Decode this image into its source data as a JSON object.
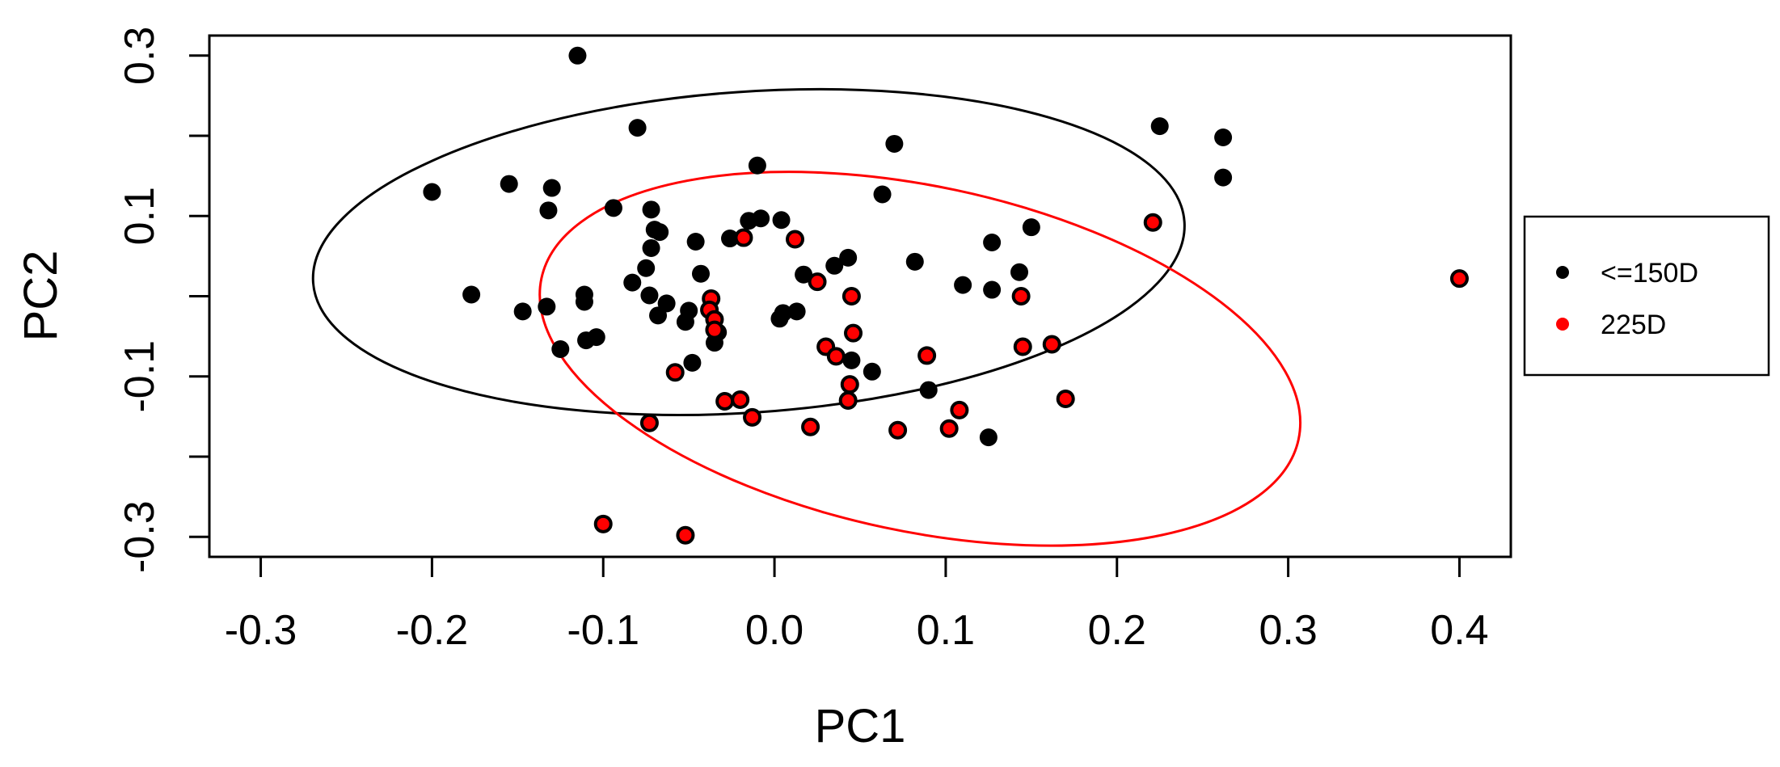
{
  "chart_data": {
    "type": "scatter",
    "title": "",
    "xlabel": "PC1",
    "ylabel": "PC2",
    "xlim": [
      -0.33,
      0.43
    ],
    "ylim": [
      -0.325,
      0.325
    ],
    "xticks": [
      -0.3,
      -0.2,
      -0.1,
      0.0,
      0.1,
      0.2,
      0.3,
      0.4
    ],
    "xtick_labels": [
      "-0.3",
      "-0.2",
      "-0.1",
      "0.0",
      "0.1",
      "0.2",
      "0.3",
      "0.4"
    ],
    "yticks": [
      -0.3,
      -0.2,
      -0.1,
      0.0,
      0.1,
      0.2,
      0.3
    ],
    "ytick_labels": [
      "-0.3",
      "",
      "-0.1",
      "",
      "0.1",
      "",
      "0.3"
    ],
    "grid": false,
    "legend": {
      "position": "right",
      "entries": [
        {
          "label": "<=150D",
          "color": "#000000"
        },
        {
          "label": "225D",
          "color": "#ff0000"
        }
      ]
    },
    "series": [
      {
        "name": "<=150D",
        "color": "#000000",
        "points": [
          [
            -0.115,
            0.3
          ],
          [
            -0.08,
            0.21
          ],
          [
            -0.2,
            0.13
          ],
          [
            -0.155,
            0.14
          ],
          [
            -0.13,
            0.135
          ],
          [
            -0.132,
            0.107
          ],
          [
            -0.094,
            0.11
          ],
          [
            -0.072,
            0.108
          ],
          [
            -0.01,
            0.163
          ],
          [
            0.07,
            0.19
          ],
          [
            0.225,
            0.212
          ],
          [
            0.262,
            0.198
          ],
          [
            0.262,
            0.148
          ],
          [
            0.063,
            0.127
          ],
          [
            -0.07,
            0.083
          ],
          [
            -0.067,
            0.08
          ],
          [
            -0.072,
            0.06
          ],
          [
            -0.046,
            0.068
          ],
          [
            -0.026,
            0.072
          ],
          [
            -0.015,
            0.094
          ],
          [
            -0.008,
            0.097
          ],
          [
            0.004,
            0.095
          ],
          [
            -0.075,
            0.035
          ],
          [
            -0.083,
            0.017
          ],
          [
            -0.043,
            0.028
          ],
          [
            0.043,
            0.048
          ],
          [
            0.035,
            0.038
          ],
          [
            0.017,
            0.027
          ],
          [
            0.082,
            0.043
          ],
          [
            0.127,
            0.067
          ],
          [
            0.15,
            0.086
          ],
          [
            -0.177,
            0.002
          ],
          [
            -0.147,
            -0.019
          ],
          [
            -0.133,
            -0.013
          ],
          [
            -0.111,
            -0.007
          ],
          [
            -0.111,
            0.002
          ],
          [
            -0.073,
            0.001
          ],
          [
            -0.063,
            -0.009
          ],
          [
            -0.068,
            -0.024
          ],
          [
            -0.05,
            -0.018
          ],
          [
            -0.052,
            -0.032
          ],
          [
            -0.033,
            -0.045
          ],
          [
            -0.035,
            -0.058
          ],
          [
            -0.11,
            -0.055
          ],
          [
            -0.104,
            -0.051
          ],
          [
            -0.125,
            -0.066
          ],
          [
            -0.048,
            -0.083
          ],
          [
            0.003,
            -0.028
          ],
          [
            0.005,
            -0.021
          ],
          [
            0.013,
            -0.019
          ],
          [
            0.127,
            0.008
          ],
          [
            0.11,
            0.014
          ],
          [
            0.143,
            0.03
          ],
          [
            0.045,
            -0.08
          ],
          [
            0.057,
            -0.094
          ],
          [
            0.09,
            -0.117
          ],
          [
            0.125,
            -0.176
          ]
        ]
      },
      {
        "name": "225D",
        "color": "#ff0000",
        "points": [
          [
            0.4,
            0.022
          ],
          [
            0.221,
            0.092
          ],
          [
            -0.018,
            0.073
          ],
          [
            0.012,
            0.071
          ],
          [
            0.025,
            0.018
          ],
          [
            0.045,
            0.0
          ],
          [
            -0.037,
            -0.003
          ],
          [
            -0.038,
            -0.017
          ],
          [
            -0.035,
            -0.029
          ],
          [
            -0.035,
            -0.042
          ],
          [
            0.046,
            -0.046
          ],
          [
            0.144,
            0.0
          ],
          [
            0.03,
            -0.063
          ],
          [
            0.036,
            -0.075
          ],
          [
            0.089,
            -0.074
          ],
          [
            0.145,
            -0.063
          ],
          [
            0.162,
            -0.06
          ],
          [
            -0.058,
            -0.095
          ],
          [
            0.044,
            -0.11
          ],
          [
            0.043,
            -0.13
          ],
          [
            -0.029,
            -0.131
          ],
          [
            -0.02,
            -0.129
          ],
          [
            -0.013,
            -0.151
          ],
          [
            0.021,
            -0.163
          ],
          [
            0.072,
            -0.167
          ],
          [
            0.102,
            -0.165
          ],
          [
            0.108,
            -0.142
          ],
          [
            0.17,
            -0.128
          ],
          [
            -0.073,
            -0.158
          ],
          [
            -0.1,
            -0.284
          ],
          [
            -0.052,
            -0.298
          ]
        ]
      }
    ],
    "ellipses": [
      {
        "series": "<=150D",
        "color": "#000000",
        "center": [
          -0.015,
          0.055
        ],
        "semi_axis_x": 0.255,
        "semi_axis_y": 0.2,
        "angle_deg": -4
      },
      {
        "series": "225D",
        "color": "#ff0000",
        "center": [
          0.085,
          -0.078
        ],
        "semi_axis_x": 0.226,
        "semi_axis_y": 0.215,
        "angle_deg": 12
      }
    ]
  }
}
